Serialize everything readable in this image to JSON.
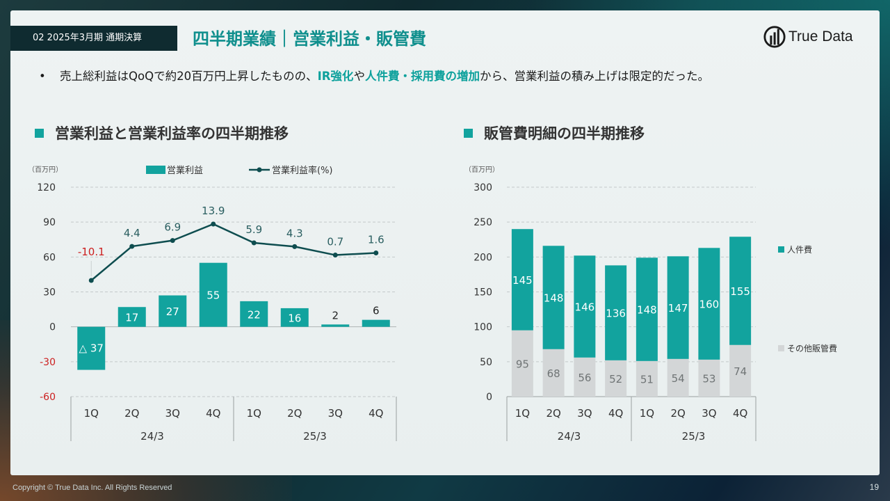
{
  "header": {
    "section_tag": "02 2025年3月期 通期決算",
    "title": "四半期業績｜営業利益・販管費",
    "logo_text": "True Data"
  },
  "bullet": {
    "marker": "•",
    "part1": "売上総利益はQoQで約20百万円上昇したものの、",
    "em1": "IR強化",
    "part2": "や",
    "em2": "人件費・採用費の増加",
    "part3": "から、営業利益の積み上げは限定的だった。"
  },
  "left_section_title": "営業利益と営業利益率の四半期推移",
  "right_section_title": "販管費明細の四半期推移",
  "footer": {
    "copyright": "Copyright © True Data Inc. All Rights Reserved",
    "page_number": "19"
  },
  "colors": {
    "teal": "#12a39e",
    "dark_teal": "#0e4d4f",
    "gray_bar": "#d3d6d7",
    "negative_label": "#cc1f1f"
  },
  "chart_data": [
    {
      "type": "bar",
      "title": "営業利益と営業利益率の四半期推移",
      "unit_label": "（百万円）",
      "categories": [
        "1Q",
        "2Q",
        "3Q",
        "4Q",
        "1Q",
        "2Q",
        "3Q",
        "4Q"
      ],
      "groups": [
        {
          "label": "24/3",
          "count": 4
        },
        {
          "label": "25/3",
          "count": 4
        }
      ],
      "series": [
        {
          "name": "営業利益",
          "kind": "bar",
          "values": [
            -37,
            17,
            27,
            55,
            22,
            16,
            2,
            6
          ],
          "labels": [
            "△ 37",
            "17",
            "27",
            "55",
            "22",
            "16",
            "2",
            "6"
          ]
        },
        {
          "name": "営業利益率(%)",
          "kind": "line",
          "values": [
            -10.1,
            4.4,
            6.9,
            13.9,
            5.9,
            4.3,
            0.7,
            1.6
          ],
          "labels": [
            "-10.1",
            "4.4",
            "6.9",
            "13.9",
            "5.9",
            "4.3",
            "0.7",
            "1.6"
          ]
        }
      ],
      "yticks": [
        120,
        90,
        60,
        30,
        0,
        -30,
        -60
      ],
      "ytick_labels": [
        "120",
        "90",
        "60",
        "30",
        "0",
        "-30",
        "-60"
      ],
      "ylim": [
        -60,
        120
      ],
      "legend_position": "top",
      "grid": true
    },
    {
      "type": "bar",
      "stacked": true,
      "title": "販管費明細の四半期推移",
      "unit_label": "（百万円）",
      "categories": [
        "1Q",
        "2Q",
        "3Q",
        "4Q",
        "1Q",
        "2Q",
        "3Q",
        "4Q"
      ],
      "groups": [
        {
          "label": "24/3",
          "count": 4
        },
        {
          "label": "25/3",
          "count": 4
        }
      ],
      "series": [
        {
          "name": "その他販管費",
          "values": [
            95,
            68,
            56,
            52,
            51,
            54,
            53,
            74
          ]
        },
        {
          "name": "人件費",
          "values": [
            145,
            148,
            146,
            136,
            148,
            147,
            160,
            155
          ]
        }
      ],
      "yticks": [
        300,
        250,
        200,
        150,
        100,
        50,
        0
      ],
      "ytick_labels": [
        "300",
        "250",
        "200",
        "150",
        "100",
        "50",
        "0"
      ],
      "ylim": [
        0,
        300
      ],
      "legend_position": "right",
      "grid": true
    }
  ]
}
